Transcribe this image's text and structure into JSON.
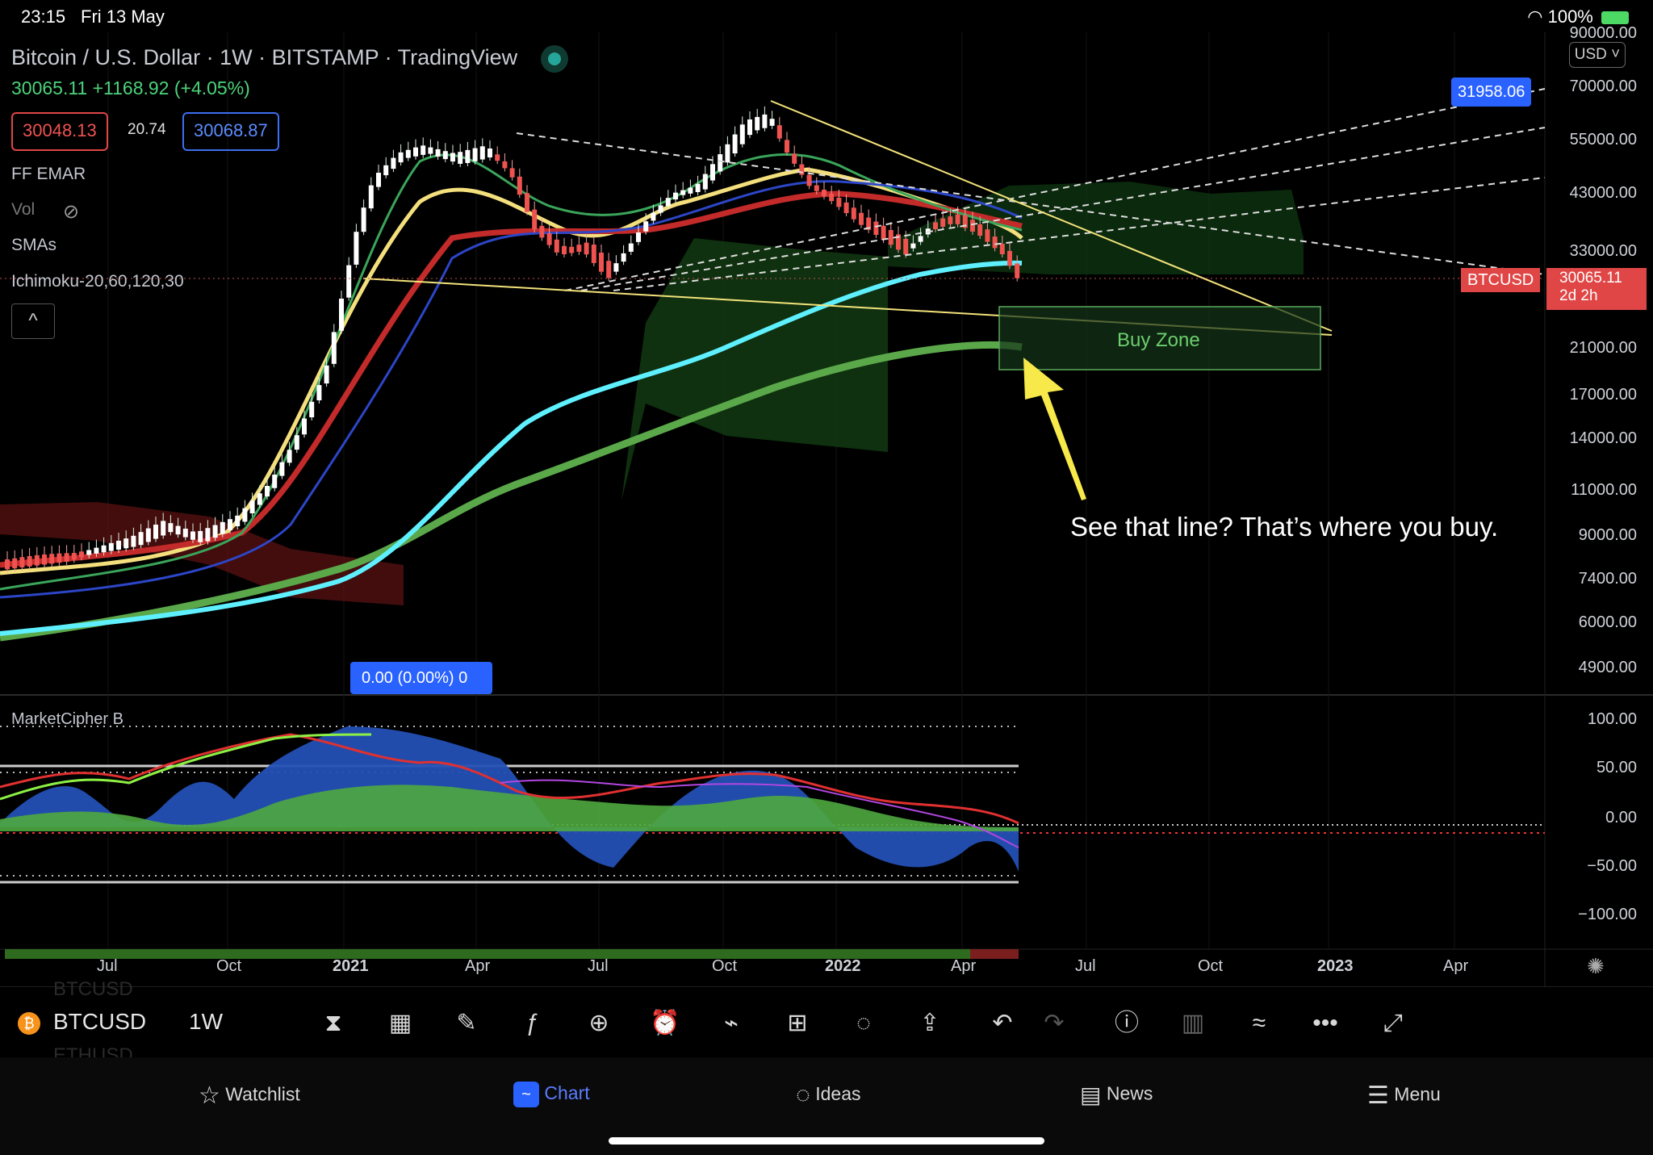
{
  "status_bar": {
    "time": "23:15",
    "date": "Fri 13 May",
    "battery": "100%"
  },
  "legend": {
    "title": "Bitcoin / U.S. Dollar · 1W · BITSTAMP · TradingView",
    "price_change": "30065.11 +1168.92 (+4.05%)",
    "bid": "30048.13",
    "spread": "20.74",
    "ask": "30068.87",
    "indicators": [
      "FF EMAR",
      "Vol",
      "SMAs",
      "Ichimoku-20,60,120,30"
    ]
  },
  "currency": "USD",
  "price_axis": [
    "90000.00",
    "70000.00",
    "55000.00",
    "43000.00",
    "33000.00",
    "21000.00",
    "17000.00",
    "14000.00",
    "11000.00",
    "9000.00",
    "7400.00",
    "6000.00",
    "4900.00"
  ],
  "price_tags": {
    "target": "31958.06",
    "symbol": "BTCUSD",
    "last": "30065.11",
    "countdown": "2d 2h"
  },
  "buy_zone_label": "Buy Zone",
  "annotation": "See that line? That’s where you buy.",
  "measure_label": "0.00 (0.00%) 0",
  "oscillator": {
    "name": "MarketCipher B",
    "axis": [
      "100.00",
      "50.00",
      "0.00",
      "−50.00",
      "−100.00"
    ]
  },
  "time_axis": [
    "Jul",
    "Oct",
    "2021",
    "Apr",
    "Jul",
    "Oct",
    "2022",
    "Apr",
    "Jul",
    "Oct",
    "2023",
    "Apr"
  ],
  "toolbar": {
    "symbol": "BTCUSD",
    "interval": "1W",
    "ghost_above": "BTCUSD",
    "ghost_below": "ETHUSD"
  },
  "tabs": [
    {
      "label": "Watchlist",
      "icon": "star-icon"
    },
    {
      "label": "Chart",
      "icon": "chart-icon"
    },
    {
      "label": "Ideas",
      "icon": "lightbulb-icon"
    },
    {
      "label": "News",
      "icon": "news-icon"
    },
    {
      "label": "Menu",
      "icon": "menu-icon"
    }
  ],
  "colors": {
    "up": "#26a69a",
    "down": "#ef5350",
    "accent": "#2962ff",
    "sma_cyan": "#5ff0ff",
    "sma_green": "#5aa84a",
    "trend_yellow": "#f2e27a",
    "annotation_arrow": "#f7e94a"
  }
}
